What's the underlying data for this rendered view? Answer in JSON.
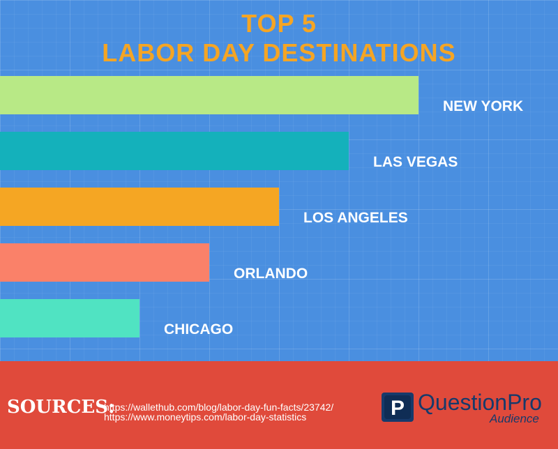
{
  "title_line1": "TOP 5",
  "title_line2": "LABOR DAY DESTINATIONS",
  "chart_data": {
    "type": "bar",
    "orientation": "horizontal",
    "categories": [
      "NEW YORK",
      "LAS VEGAS",
      "LOS ANGELES",
      "ORLANDO",
      "CHICAGO"
    ],
    "values": [
      6,
      5,
      4,
      3,
      2
    ],
    "colors": [
      "#b8e986",
      "#14b1bb",
      "#f5a623",
      "#fa8169",
      "#50e3c2"
    ],
    "grid": true
  },
  "footer": {
    "sources_label": "SOURCES:",
    "sources": [
      "https://wallethub.com/blog/labor-day-fun-facts/23742/",
      "https://www.moneytips.com/labor-day-statistics"
    ],
    "logo": {
      "icon_letter": "P",
      "name": "QuestionPro",
      "sub": "Audience"
    }
  }
}
